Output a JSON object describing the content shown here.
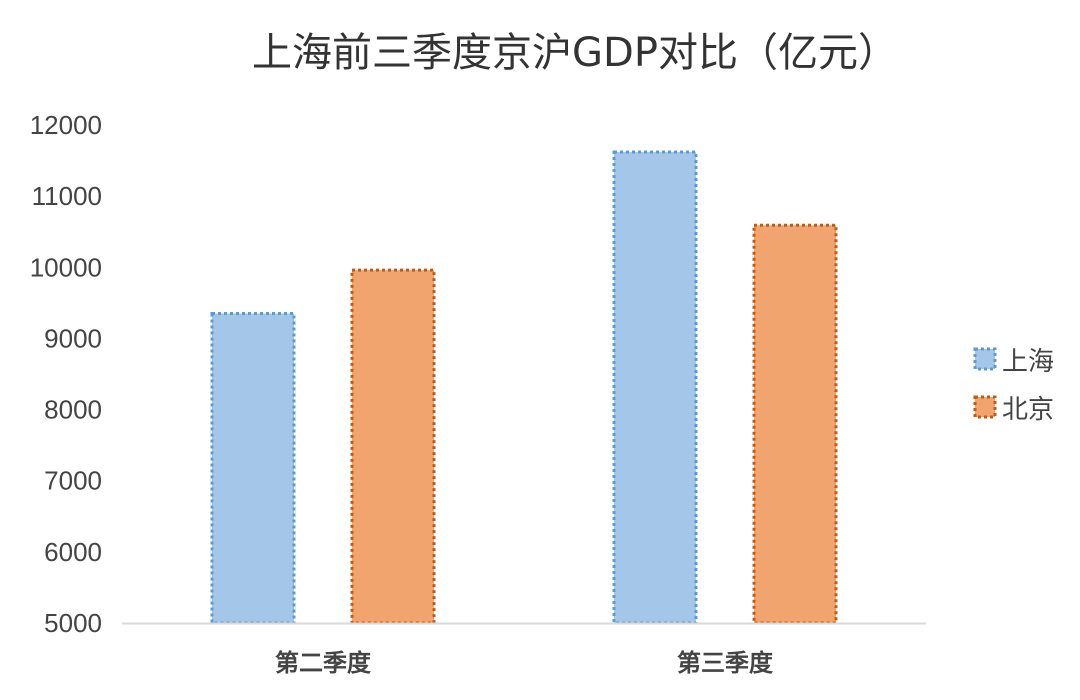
{
  "chart_data": {
    "type": "bar",
    "title": "上海前三季度京沪GDP对比（亿元）",
    "categories": [
      "第二季度",
      "第三季度"
    ],
    "series": [
      {
        "name": "上海",
        "values": [
          9350,
          11620
        ],
        "color": "#a4c7e9",
        "border_color": "#5b9bd5"
      },
      {
        "name": "北京",
        "values": [
          9960,
          10590
        ],
        "color": "#f2a46f",
        "border_color": "#c55a11"
      }
    ],
    "ylim": [
      5000,
      12000
    ],
    "yticks": [
      "5000",
      "6000",
      "7000",
      "8000",
      "9000",
      "10000",
      "11000",
      "12000"
    ],
    "grid": false,
    "legend_position": "right",
    "axis_color": "#d9d9d9"
  }
}
